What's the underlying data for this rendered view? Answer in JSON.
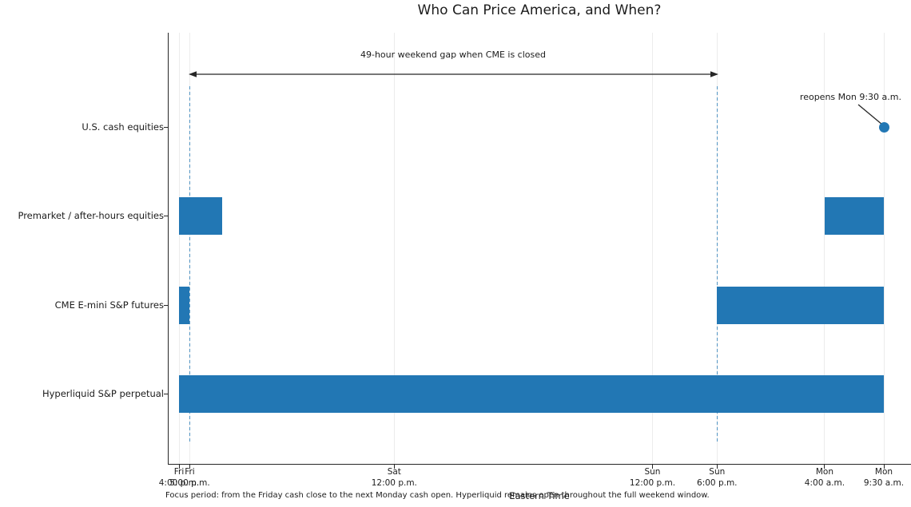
{
  "chart_data": {
    "type": "gantt",
    "title": "Who Can Price America, and When?",
    "xlabel": "Eastern Time",
    "caption": "Focus period: from the Friday cash close to the next Monday cash open. Hyperliquid remains open throughout the full weekend window.",
    "x_axis": {
      "unit_note": "hours measured from Fri 4:00 p.m. ET",
      "range_hours": [
        0,
        65.5
      ],
      "grid": true,
      "ticks": [
        {
          "hours": 0,
          "line1": "Fri",
          "line2": "4:00 p.m."
        },
        {
          "hours": 1,
          "line1": "Fri",
          "line2": "5:00 p.m."
        },
        {
          "hours": 20,
          "line1": "Sat",
          "line2": "12:00 p.m."
        },
        {
          "hours": 44,
          "line1": "Sun",
          "line2": "12:00 p.m."
        },
        {
          "hours": 50,
          "line1": "Sun",
          "line2": "6:00 p.m."
        },
        {
          "hours": 60,
          "line1": "Mon",
          "line2": "4:00 a.m."
        },
        {
          "hours": 65.5,
          "line1": "Mon",
          "line2": "9:30 a.m."
        }
      ]
    },
    "rows": [
      {
        "label": "U.S. cash equities",
        "bars": []
      },
      {
        "label": "Premarket / after-hours equities",
        "bars": [
          [
            0,
            4
          ],
          [
            60,
            65.5
          ]
        ]
      },
      {
        "label": "CME E-mini S&P futures",
        "bars": [
          [
            0,
            1
          ],
          [
            50,
            65.5
          ]
        ]
      },
      {
        "label": "Hyperliquid S&P perpetual",
        "bars": [
          [
            0,
            65.5
          ]
        ]
      }
    ],
    "gap_window": {
      "label": "49-hour weekend gap when CME is closed",
      "from_hours": 1,
      "to_hours": 50
    },
    "reopen_marker": {
      "label": "reopens Mon 9:30 a.m.",
      "hours": 65.5,
      "row_index": 0
    },
    "colors": {
      "bar": "#2277b4",
      "marker": "#2277b4",
      "dashed_line": "rgba(31,119,180,0.75)",
      "grid": "#ececec",
      "axis": "#262626",
      "text": "#1c1c1c"
    }
  }
}
